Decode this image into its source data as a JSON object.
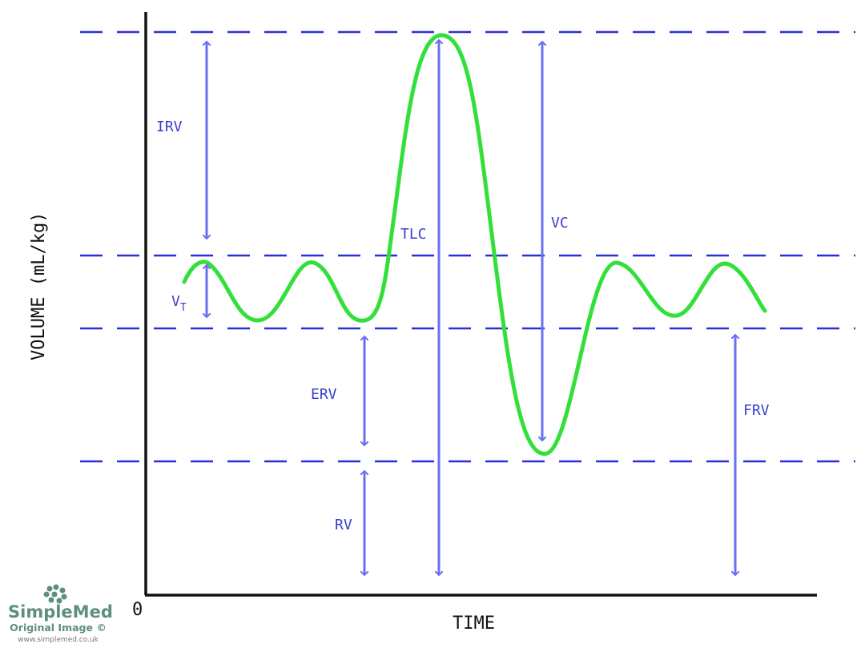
{
  "axes": {
    "y_label": "VOLUME (mL/kg)",
    "x_label": "TIME",
    "origin": "0"
  },
  "labels": {
    "irv": "IRV",
    "vt": "V",
    "vt_sub": "T",
    "erv": "ERV",
    "rv": "RV",
    "tlc": "TLC",
    "vc": "VC",
    "frv": "FRV"
  },
  "logo": {
    "name": "SimpleMed",
    "caption": "Original Image ©",
    "url": "www.simplemed.co.uk"
  },
  "colors": {
    "curve": "#33e03a",
    "lines": "#2a2fd8",
    "arrows": "#6b6ff0",
    "logo": "#5e8f7c"
  }
}
